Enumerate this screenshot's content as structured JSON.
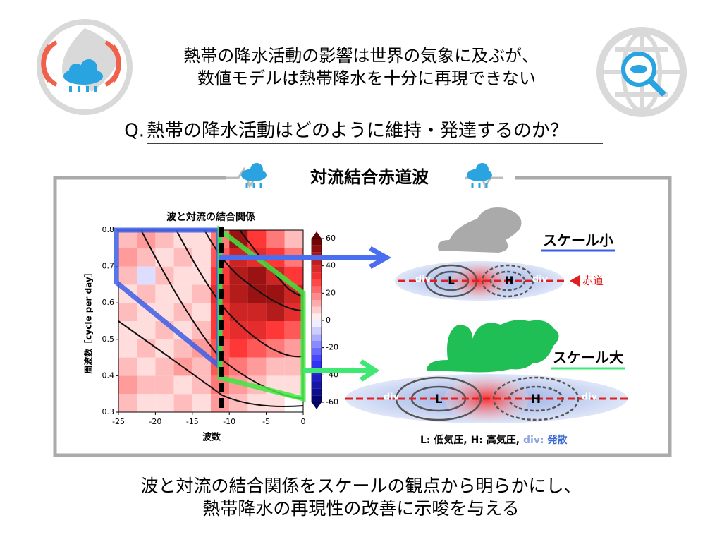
{
  "header": {
    "lines": [
      "熱帯の降水活動の影響は世界の気象に及ぶが、",
      "数値モデルは熱帯降水を十分に再現できない"
    ],
    "question_prefix": "Q.",
    "question": "熱帯の降水活動はどのように維持・発達するのか？"
  },
  "panel": {
    "title": "対流結合赤道波"
  },
  "chart_data": {
    "type": "heatmap",
    "title": "波と対流の結合関係",
    "x_label": "波数",
    "y_label": "周波数［cycle per day］",
    "x_bins": [
      -25,
      -22.5,
      -20,
      -17.5,
      -15,
      -12.5,
      -10,
      -7.5,
      -5,
      -2.5,
      0
    ],
    "y_bins": [
      0.3,
      0.35,
      0.4,
      0.45,
      0.5,
      0.55,
      0.6,
      0.65,
      0.7,
      0.75,
      0.8
    ],
    "values": [
      [
        10,
        5,
        5,
        10,
        5,
        15,
        10,
        5,
        5,
        0
      ],
      [
        15,
        10,
        10,
        5,
        10,
        20,
        15,
        10,
        5,
        5
      ],
      [
        10,
        5,
        10,
        15,
        10,
        25,
        20,
        15,
        10,
        10
      ],
      [
        5,
        10,
        5,
        10,
        15,
        25,
        30,
        25,
        20,
        15
      ],
      [
        5,
        5,
        10,
        5,
        10,
        30,
        35,
        35,
        30,
        25
      ],
      [
        10,
        5,
        5,
        10,
        5,
        30,
        40,
        40,
        45,
        35
      ],
      [
        5,
        10,
        5,
        5,
        10,
        35,
        45,
        50,
        50,
        40
      ],
      [
        10,
        -5,
        10,
        5,
        5,
        30,
        45,
        50,
        40,
        30
      ],
      [
        15,
        10,
        5,
        10,
        5,
        25,
        40,
        35,
        30,
        20
      ],
      [
        10,
        15,
        10,
        5,
        5,
        20,
        50,
        30,
        20,
        10
      ]
    ],
    "xlim": [
      -25,
      0
    ],
    "xticks": [
      -25,
      -20,
      -15,
      -10,
      -5,
      0
    ],
    "ylim": [
      0.3,
      0.8
    ],
    "yticks": [
      0.3,
      0.4,
      0.5,
      0.6,
      0.7,
      0.8
    ],
    "zlim": [
      -60,
      60
    ],
    "zticks": [
      -60,
      -40,
      -20,
      0,
      20,
      40,
      60
    ]
  },
  "diagram": {
    "small_label": "スケール小",
    "large_label": "スケール大",
    "equator": "赤道",
    "div": "div",
    "low": "L",
    "high": "H",
    "legend": [
      "L:",
      "低気圧,",
      "H:",
      "高気圧,",
      "div:",
      "発散"
    ]
  },
  "footer": {
    "lines": [
      "波と対流の結合関係をスケールの観点から明らかにし、",
      "熱帯降水の再現性の改善に示唆を与える"
    ]
  }
}
